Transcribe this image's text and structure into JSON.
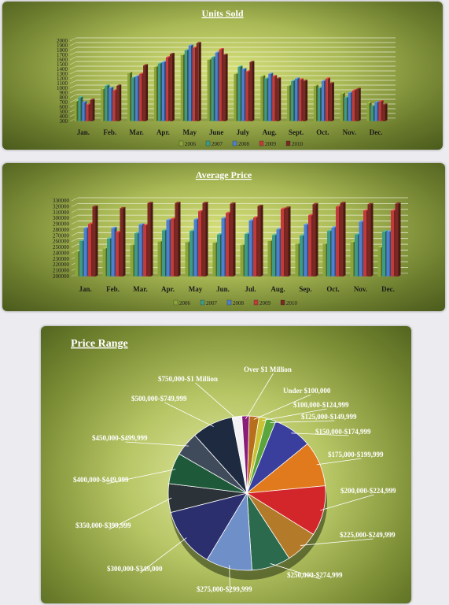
{
  "colors": {
    "s2006": "#8aa63a",
    "s2007": "#3f9a86",
    "s2008": "#4f7fd0",
    "s2009": "#c23a3a",
    "s2010": "#7a2a22"
  },
  "chart_data": [
    {
      "type": "bar",
      "title": "Units Sold",
      "categories": [
        "Jan.",
        "Feb.",
        "Mar.",
        "Apr.",
        "May",
        "June",
        "July",
        "Aug.",
        "Sept.",
        "Oct.",
        "Nov.",
        "Dec."
      ],
      "ylim": [
        300,
        2000
      ],
      "yticks": [
        300,
        400,
        500,
        600,
        700,
        800,
        900,
        1000,
        1100,
        1200,
        1300,
        1400,
        1500,
        1600,
        1700,
        1800,
        1900,
        2000
      ],
      "legend_position": "bottom",
      "series": [
        {
          "name": "2006",
          "values": [
            720,
            980,
            1320,
            1450,
            1700,
            1600,
            1300,
            1250,
            1050,
            1050,
            880,
            680
          ]
        },
        {
          "name": "2007",
          "values": [
            800,
            1050,
            1220,
            1520,
            1800,
            1650,
            1450,
            1200,
            1150,
            1000,
            800,
            620
          ]
        },
        {
          "name": "2008",
          "values": [
            700,
            1000,
            1250,
            1550,
            1900,
            1750,
            1400,
            1300,
            1200,
            1150,
            900,
            700
          ]
        },
        {
          "name": "2009",
          "values": [
            650,
            950,
            1300,
            1650,
            1850,
            1820,
            1350,
            1250,
            1180,
            1200,
            950,
            720
          ]
        },
        {
          "name": "2010",
          "values": [
            750,
            1050,
            1480,
            1720,
            1950,
            1700,
            1550,
            1200,
            1150,
            1100,
            980,
            650
          ]
        }
      ]
    },
    {
      "type": "bar",
      "title": "Average Price",
      "categories": [
        "Jan.",
        "Feb.",
        "Mar.",
        "Apr.",
        "May",
        "Jun.",
        "Jul.",
        "Aug.",
        "Sep.",
        "Oct.",
        "Nov.",
        "Dec."
      ],
      "ylim": [
        200000,
        330000
      ],
      "yticks": [
        200000,
        210000,
        220000,
        230000,
        240000,
        250000,
        260000,
        270000,
        280000,
        290000,
        300000,
        310000,
        320000,
        330000
      ],
      "legend_position": "bottom",
      "series": [
        {
          "name": "2006",
          "values": [
            243000,
            248000,
            254000,
            260000,
            259000,
            258000,
            254000,
            261000,
            256000,
            256000,
            259000,
            250000
          ]
        },
        {
          "name": "2007",
          "values": [
            261000,
            265000,
            274000,
            279000,
            278000,
            272000,
            273000,
            271000,
            270000,
            278000,
            272000,
            277000
          ]
        },
        {
          "name": "2008",
          "values": [
            283000,
            283000,
            289000,
            297000,
            298000,
            300000,
            296000,
            281000,
            289000,
            284000,
            294000,
            277000
          ]
        },
        {
          "name": "2009",
          "values": [
            290000,
            276000,
            288000,
            299000,
            312000,
            309000,
            301000,
            316000,
            305000,
            320000,
            313000,
            313000
          ]
        },
        {
          "name": "2010",
          "values": [
            320000,
            317000,
            326000,
            326000,
            326000,
            325000,
            321000,
            318000,
            324000,
            326000,
            324000,
            325000
          ]
        }
      ]
    },
    {
      "type": "pie",
      "title": "Price Range",
      "legend_position": "none",
      "slices": [
        {
          "label": "Under $100,000",
          "value": 2.0,
          "color": "#b86f1c"
        },
        {
          "label": "$100,000-$124,999",
          "value": 1.5,
          "color": "#c9c233"
        },
        {
          "label": "$125,000-$149,999",
          "value": 2.0,
          "color": "#5aa53c"
        },
        {
          "label": "$150,000-$174,999",
          "value": 8.0,
          "color": "#3a3f9e"
        },
        {
          "label": "$175,000-$199,999",
          "value": 9.5,
          "color": "#e07a1c"
        },
        {
          "label": "$200,000-$224,999",
          "value": 10.5,
          "color": "#d3262b"
        },
        {
          "label": "$225,000-$249,999",
          "value": 7.0,
          "color": "#b37a2a"
        },
        {
          "label": "$250,000-$274,999",
          "value": 8.0,
          "color": "#2c6a4e"
        },
        {
          "label": "$275,000-$299,999",
          "value": 9.5,
          "color": "#6e8fc8"
        },
        {
          "label": "$300,000-$349,000",
          "value": 12.5,
          "color": "#2c2f6e"
        },
        {
          "label": "$350,000-$399,999",
          "value": 6.0,
          "color": "#2b3238"
        },
        {
          "label": "$400,000-$449,999",
          "value": 6.5,
          "color": "#1e5a3a"
        },
        {
          "label": "$450,000-$499,999",
          "value": 5.0,
          "color": "#3f4a5a"
        },
        {
          "label": "$500,000-$749,999",
          "value": 8.5,
          "color": "#1d2a40"
        },
        {
          "label": "$750,000-$1 Million",
          "value": 2.0,
          "color": "#f2f2f4"
        },
        {
          "label": "Over $1 Million",
          "value": 1.5,
          "color": "#8a1c7a"
        }
      ]
    }
  ]
}
